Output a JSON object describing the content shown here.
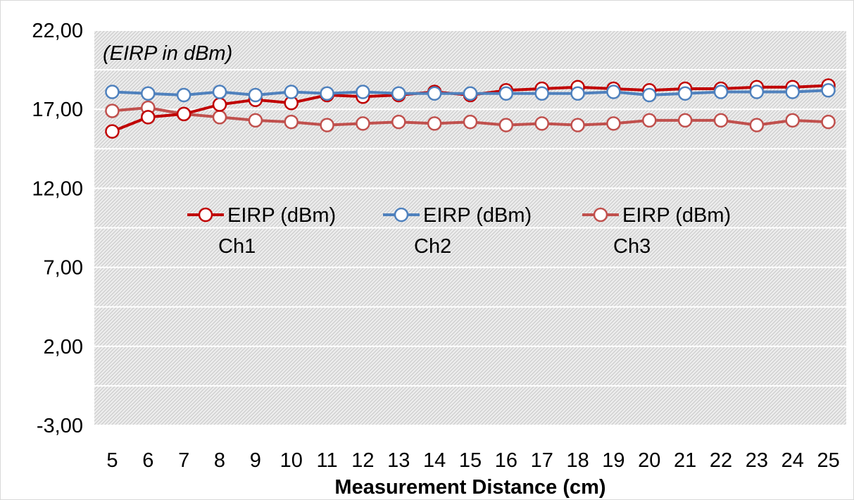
{
  "chart_data": {
    "type": "line",
    "annotation": "(EIRP in dBm)",
    "xlabel": "Measurement Distance (cm)",
    "ylabel": "",
    "ylim": [
      -3,
      22
    ],
    "ytick_values": [
      -3,
      2,
      7,
      12,
      17,
      22
    ],
    "ytick_labels": [
      "-3,00",
      "2,00",
      "7,00",
      "12,00",
      "17,00",
      "22,00"
    ],
    "categories": [
      "5",
      "6",
      "7",
      "8",
      "9",
      "10",
      "11",
      "12",
      "13",
      "14",
      "15",
      "16",
      "17",
      "18",
      "19",
      "20",
      "21",
      "22",
      "23",
      "24",
      "25"
    ],
    "grid": true,
    "legend_position": "center",
    "series": [
      {
        "name_line1": "EIRP (dBm)",
        "name_line2": "Ch1",
        "color": "#c00000",
        "values": [
          15.6,
          16.5,
          16.7,
          17.3,
          17.6,
          17.4,
          17.9,
          17.8,
          17.9,
          18.1,
          17.9,
          18.2,
          18.3,
          18.4,
          18.3,
          18.2,
          18.3,
          18.3,
          18.4,
          18.4,
          18.5
        ]
      },
      {
        "name_line1": "EIRP (dBm)",
        "name_line2": "Ch2",
        "color": "#4f81bd",
        "values": [
          18.1,
          18.0,
          17.9,
          18.1,
          17.9,
          18.1,
          18.0,
          18.1,
          18.0,
          18.0,
          18.0,
          18.0,
          18.0,
          18.0,
          18.1,
          17.9,
          18.0,
          18.1,
          18.1,
          18.1,
          18.2
        ]
      },
      {
        "name_line1": "EIRP (dBm)",
        "name_line2": "Ch3",
        "color": "#c0504d",
        "values": [
          16.9,
          17.1,
          16.7,
          16.5,
          16.3,
          16.2,
          16.0,
          16.1,
          16.2,
          16.1,
          16.2,
          16.0,
          16.1,
          16.0,
          16.1,
          16.3,
          16.3,
          16.3,
          16.0,
          16.3,
          16.2
        ]
      }
    ]
  }
}
